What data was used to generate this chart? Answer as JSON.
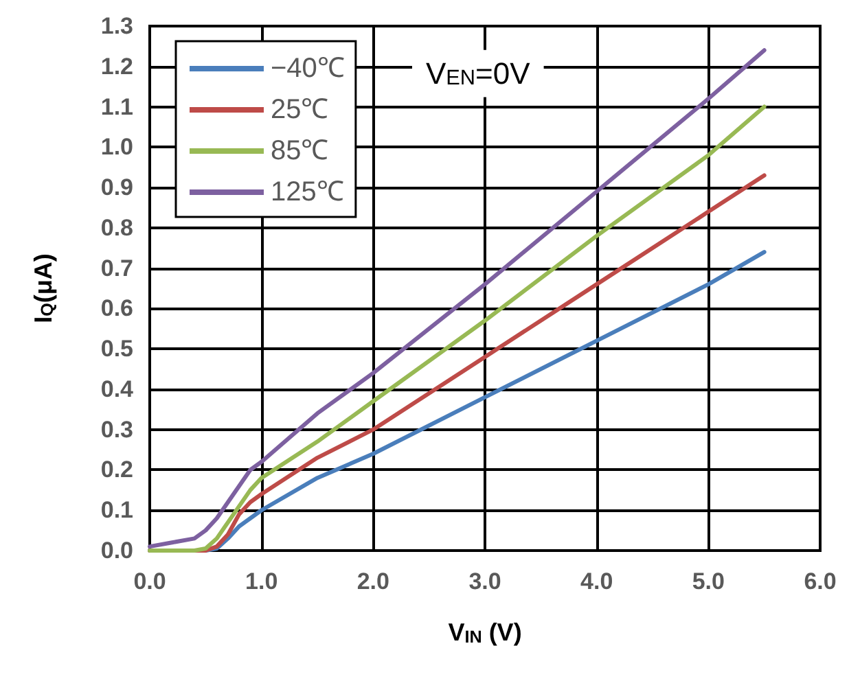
{
  "chart_data": {
    "type": "line",
    "xlabel": "V$_{IN}$ (V)",
    "ylabel": "I$_{Q}$(μA)",
    "annotations": [
      "V$_{EN}$=0V"
    ],
    "x": [
      0,
      0.2,
      0.4,
      0.5,
      0.6,
      0.7,
      0.8,
      0.9,
      1.0,
      1.5,
      2,
      3,
      4,
      5,
      5.5
    ],
    "series": [
      {
        "name": "−40℃",
        "color": "#4a7ebb",
        "values": [
          0,
          0,
          0,
          0,
          0.005,
          0.03,
          0.06,
          0.08,
          0.1,
          0.18,
          0.24,
          0.38,
          0.52,
          0.66,
          0.74
        ]
      },
      {
        "name": "25℃",
        "color": "#be4b48",
        "values": [
          0,
          0,
          0,
          0,
          0.01,
          0.04,
          0.09,
          0.12,
          0.14,
          0.23,
          0.3,
          0.48,
          0.66,
          0.84,
          0.93
        ]
      },
      {
        "name": "85℃",
        "color": "#98b954",
        "values": [
          0,
          0,
          0,
          0.005,
          0.03,
          0.07,
          0.11,
          0.15,
          0.18,
          0.27,
          0.37,
          0.57,
          0.78,
          0.98,
          1.1
        ]
      },
      {
        "name": "125℃",
        "color": "#7d60a0",
        "values": [
          0.01,
          0.02,
          0.03,
          0.05,
          0.08,
          0.12,
          0.16,
          0.2,
          0.22,
          0.34,
          0.44,
          0.66,
          0.89,
          1.12,
          1.24
        ]
      }
    ],
    "xlim": [
      0,
      6
    ],
    "xticks": [
      {
        "value": 0,
        "label": "0.0"
      },
      {
        "value": 1,
        "label": "1.0"
      },
      {
        "value": 2,
        "label": "2.0"
      },
      {
        "value": 3,
        "label": "3.0"
      },
      {
        "value": 4,
        "label": "4.0"
      },
      {
        "value": 5,
        "label": "5.0"
      },
      {
        "value": 6,
        "label": "6.0"
      }
    ],
    "ylim": [
      0,
      1.3
    ],
    "yticks": [
      {
        "value": 0,
        "label": "0.0"
      },
      0.1,
      0.2,
      0.3,
      0.4,
      0.5,
      0.6,
      0.7,
      0.8,
      0.9,
      {
        "value": 1,
        "label": "1.0"
      },
      1.1,
      1.2,
      1.3
    ],
    "grid": true,
    "legend": "top left",
    "marker": "none",
    "line_style": "solid"
  }
}
